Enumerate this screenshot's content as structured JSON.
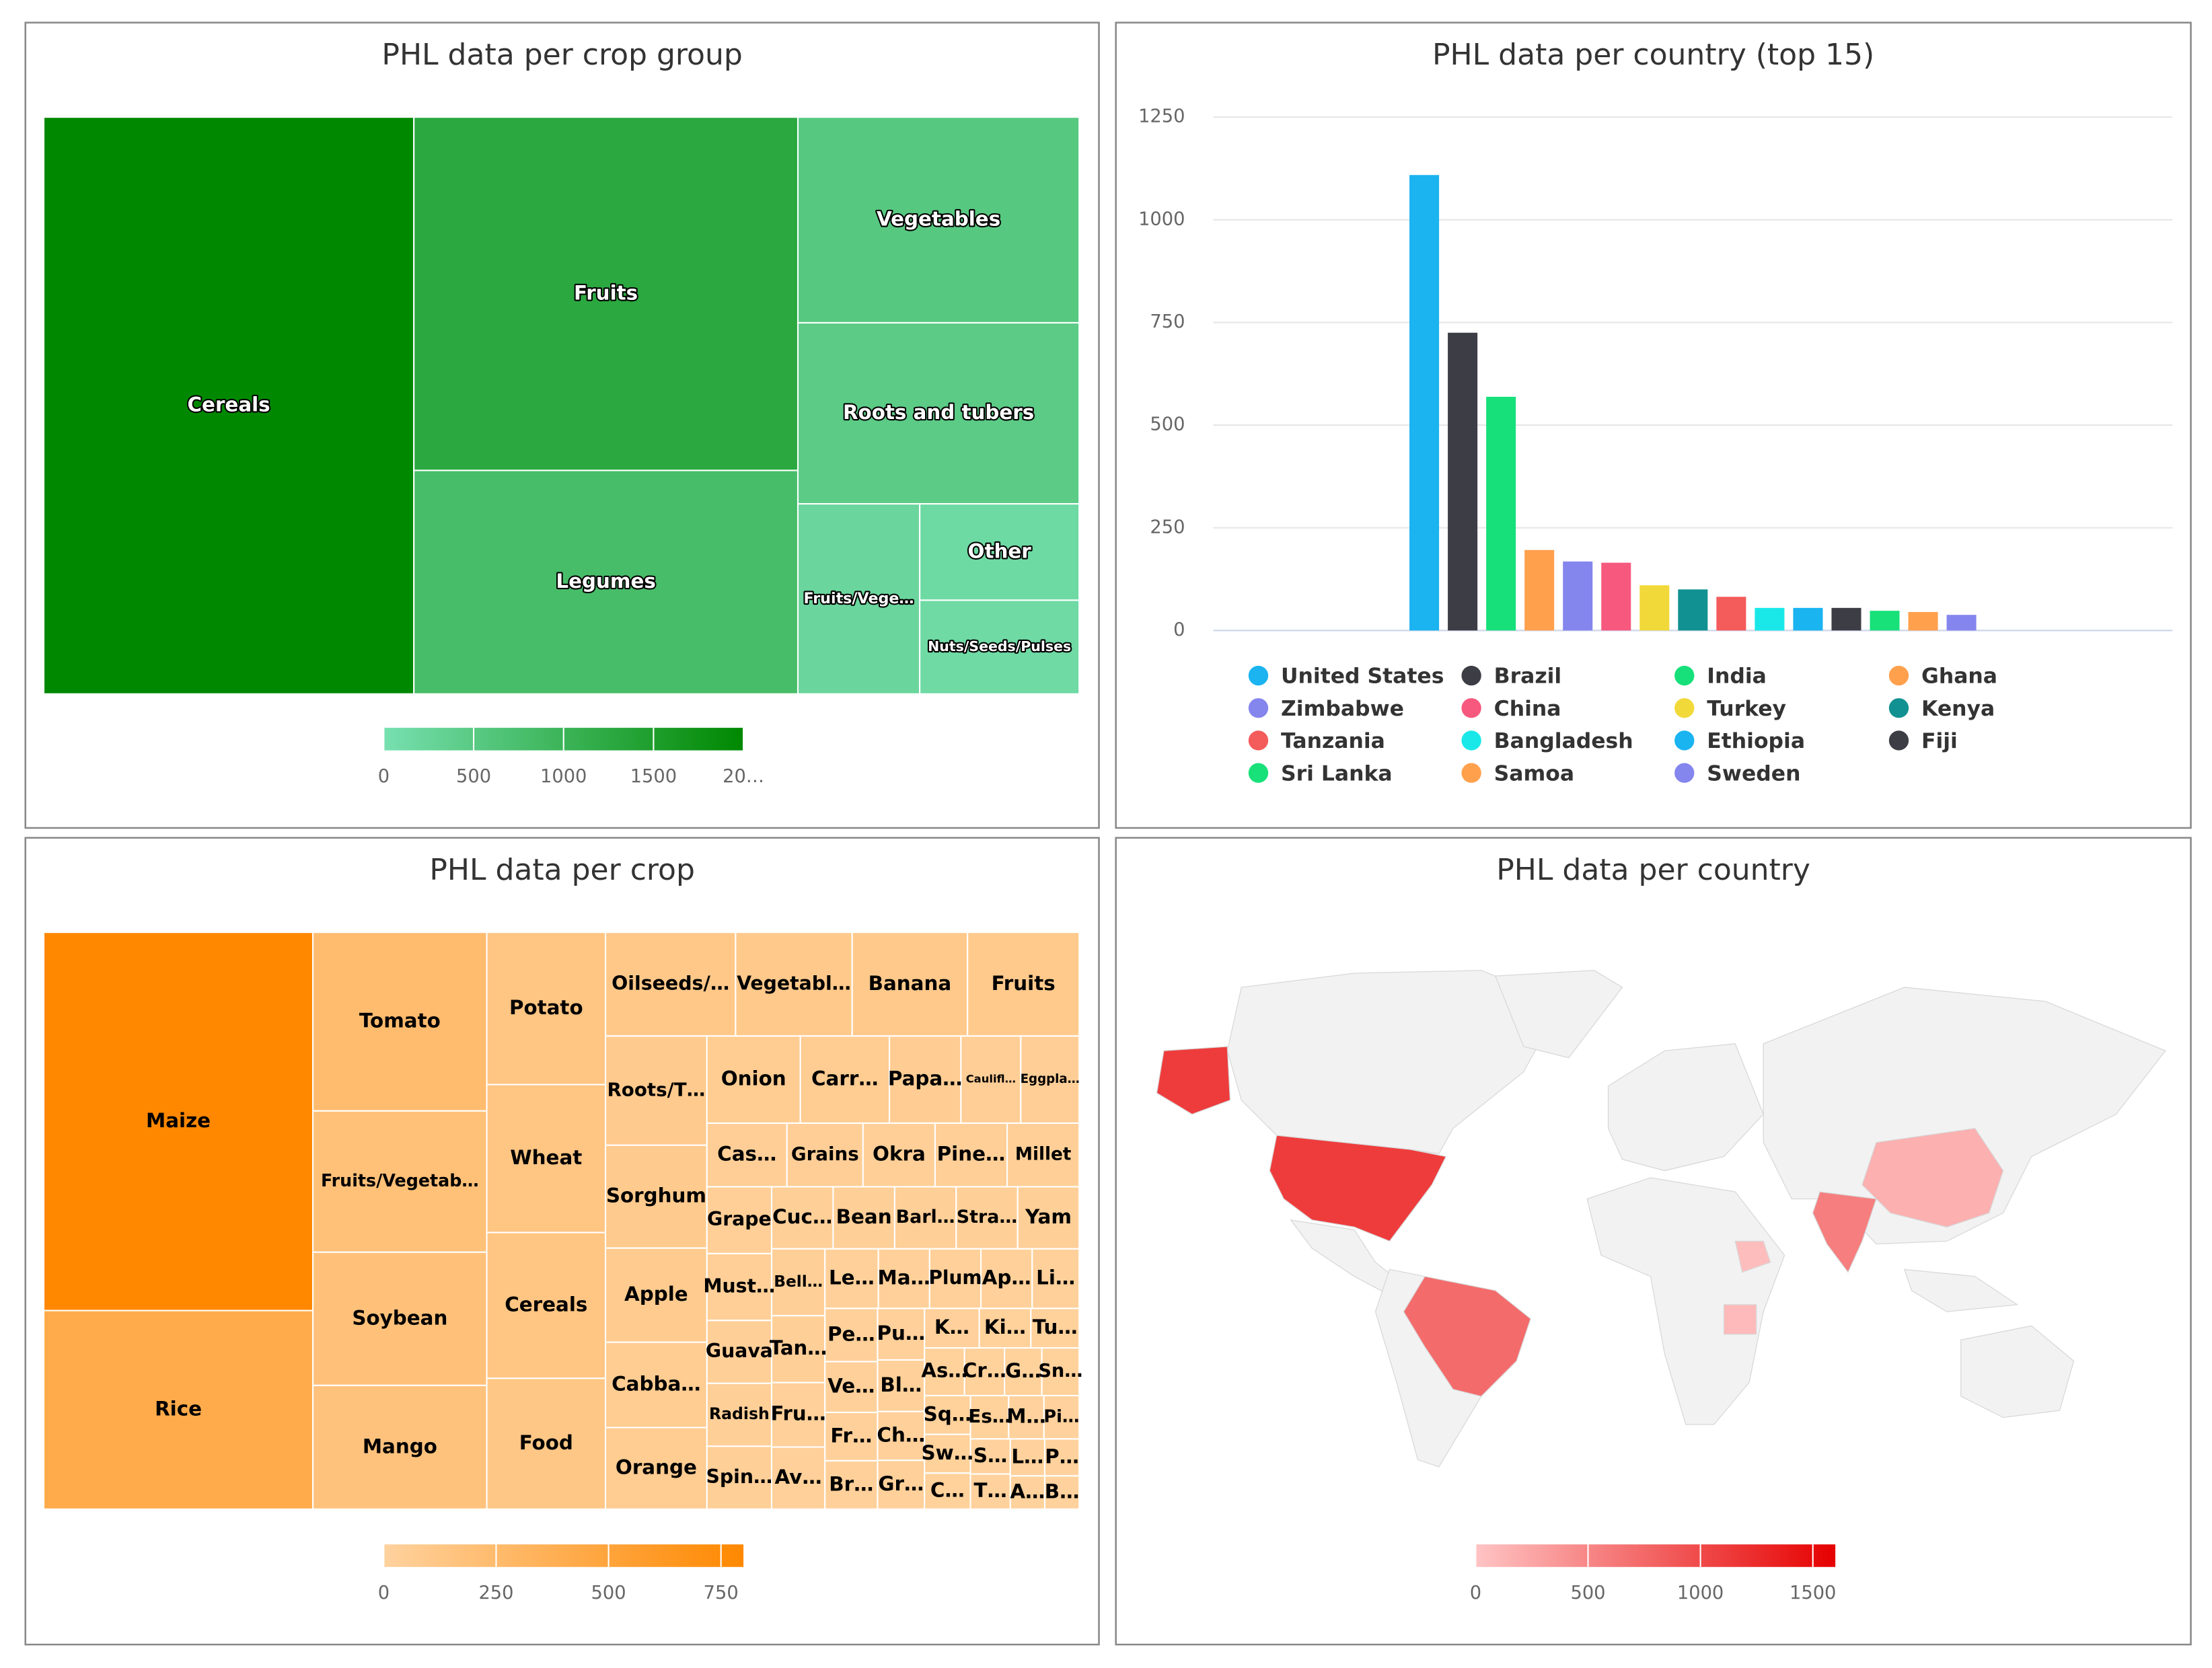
{
  "chart_data": [
    {
      "type": "treemap",
      "title": "PHL data per crop group",
      "categories": [
        "Cereals",
        "Fruits",
        "Legumes",
        "Vegetables",
        "Roots and tubers",
        "Fruits/Vege…",
        "Other",
        "Nuts/Seeds/Pulses"
      ],
      "values": [
        2000,
        1271,
        804,
        542,
        477,
        217,
        144,
        140
      ],
      "label_color": "#ffffff",
      "colorbar": {
        "min_color": "#77e0b0",
        "max_color": "#008800",
        "xlim": [
          0,
          2000
        ],
        "xticks": [
          0,
          500,
          1000,
          1500,
          {
            "value": 2000,
            "label": "20…"
          }
        ]
      }
    },
    {
      "type": "bar",
      "title": "PHL data per country (top 15)",
      "categories": [
        null
      ],
      "series": [
        {
          "name": "United States",
          "color": "#1bb3f0",
          "values": [
            1109
          ]
        },
        {
          "name": "Brazil",
          "color": "#3d3d45",
          "values": [
            725
          ]
        },
        {
          "name": "India",
          "color": "#17e07a",
          "values": [
            569
          ]
        },
        {
          "name": "Ghana",
          "color": "#ffa04d",
          "values": [
            196
          ]
        },
        {
          "name": "Zimbabwe",
          "color": "#8585ee",
          "values": [
            168
          ]
        },
        {
          "name": "China",
          "color": "#f7587e",
          "values": [
            165
          ]
        },
        {
          "name": "Turkey",
          "color": "#f2d93a",
          "values": [
            110
          ]
        },
        {
          "name": "Kenya",
          "color": "#119191",
          "values": [
            100
          ]
        },
        {
          "name": "Tanzania",
          "color": "#f45b5b",
          "values": [
            82
          ]
        },
        {
          "name": "Bangladesh",
          "color": "#1ae8e8",
          "values": [
            55
          ]
        },
        {
          "name": "Ethiopia",
          "color": "#1ab4f0",
          "values": [
            55
          ]
        },
        {
          "name": "Fiji",
          "color": "#3d3d45",
          "values": [
            55
          ]
        },
        {
          "name": "Sri Lanka",
          "color": "#19e17a",
          "values": [
            48
          ]
        },
        {
          "name": "Samoa",
          "color": "#ffa04d",
          "values": [
            45
          ]
        },
        {
          "name": "Sweden",
          "color": "#8585ee",
          "values": [
            38
          ]
        }
      ],
      "ylim": [
        0,
        1250
      ],
      "yticks": [
        0,
        250,
        500,
        750,
        1000,
        1250
      ],
      "grid": true,
      "legend": "bottom"
    },
    {
      "type": "treemap",
      "title": "PHL data per crop",
      "categories": [
        "Maize",
        "Rice",
        "Tomato",
        "Fruits/Vegetab…",
        "Soybean",
        "Mango",
        "Potato",
        "Wheat",
        "Cereals",
        "Food",
        "Oilseeds/…",
        "Vegetabl…",
        "Banana",
        "Fruits",
        "Roots/T…",
        "Sorghum",
        "Apple",
        "Cabba…",
        "Orange",
        "Onion",
        "Carr…",
        "Papa…",
        "Caulifl…",
        "Eggpla…",
        "Cas…",
        "Grains",
        "Okra",
        "Pine…",
        "Millet",
        "Grape",
        "Must…",
        "Guava",
        "Radish",
        "Spin…",
        "Cuc…",
        "Bean",
        "Barl…",
        "Stra…",
        "Yam",
        "Bell…",
        "Tan…",
        "Fru…",
        "Av…",
        "Le…",
        "Ma…",
        "Plum",
        "Ap…",
        "Li…",
        "Pe…",
        "Ve…",
        "Fr…",
        "Br…",
        "Pu…",
        "Bl…",
        "Ch…",
        "Gr…",
        "K…",
        "Ki…",
        "Tu…",
        "As…",
        "Cr…",
        "G…",
        "Sn…",
        "Sq…",
        "Sw…",
        "C…",
        "Es…",
        "M…",
        "Pi…",
        "S…",
        "T…",
        "L…",
        "P…",
        "A…",
        "B…"
      ],
      "values": [
        800,
        420,
        244,
        193,
        182,
        169,
        142,
        138,
        136,
        122,
        106,
        95,
        94,
        91,
        87,
        82,
        75,
        68,
        65,
        64,
        61,
        49,
        41,
        40,
        40,
        38,
        36,
        36,
        36,
        34,
        34,
        32,
        32,
        32,
        30,
        30,
        30,
        30,
        30,
        28,
        28,
        27,
        26,
        25,
        24,
        24,
        24,
        22,
        22,
        21,
        20,
        20,
        19,
        19,
        18,
        18,
        17,
        16,
        15,
        15,
        15,
        14,
        14,
        14,
        14,
        13,
        13,
        12,
        12,
        11,
        11,
        10,
        10,
        9,
        9
      ],
      "label_color": "#000000",
      "colorbar": {
        "min_color": "#ffd29e",
        "max_color": "#ff8800",
        "xlim": [
          0,
          800
        ],
        "xticks": [
          0,
          250,
          500,
          750
        ]
      }
    },
    {
      "type": "map",
      "title": "PHL data per country",
      "categories": [
        "United States",
        "Brazil",
        "India",
        "China",
        "Ethiopia",
        "Tanzania"
      ],
      "values": [
        1109,
        725,
        569,
        165,
        55,
        82
      ],
      "colorbar": {
        "min_color": "#ffc4c4",
        "max_color": "#e60000",
        "xlim": [
          0,
          1600
        ],
        "xticks": [
          0,
          500,
          1000,
          1500
        ]
      }
    }
  ]
}
